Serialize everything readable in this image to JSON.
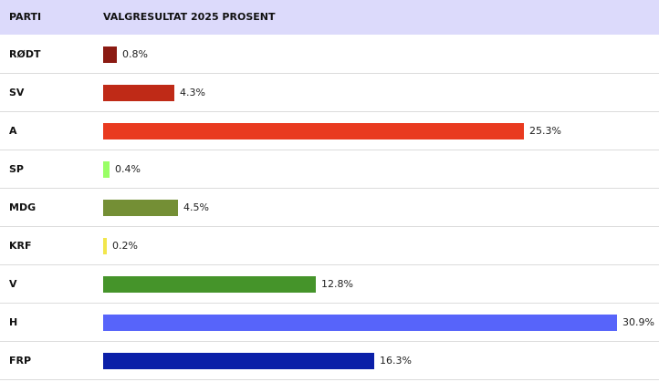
{
  "header": {
    "party_label": "PARTI",
    "result_label": "VALGRESULTAT 2025 PROSENT"
  },
  "chart_data": {
    "type": "bar",
    "orientation": "horizontal",
    "categories": [
      "RØDT",
      "SV",
      "A",
      "SP",
      "MDG",
      "KRF",
      "V",
      "H",
      "FRP"
    ],
    "values": [
      0.8,
      4.3,
      25.3,
      0.4,
      4.5,
      0.2,
      12.8,
      30.9,
      16.3
    ],
    "value_labels": [
      "0.8%",
      "4.3%",
      "25.3%",
      "0.4%",
      "4.5%",
      "0.2%",
      "12.8%",
      "30.9%",
      "16.3%"
    ],
    "colors": [
      "#8b1a12",
      "#bf2a17",
      "#e93a1f",
      "#99ff66",
      "#748f35",
      "#f2e64c",
      "#45942a",
      "#5764fa",
      "#0b1fa8"
    ],
    "xlim": [
      0,
      30.9
    ],
    "unit": "%",
    "grid": false
  }
}
